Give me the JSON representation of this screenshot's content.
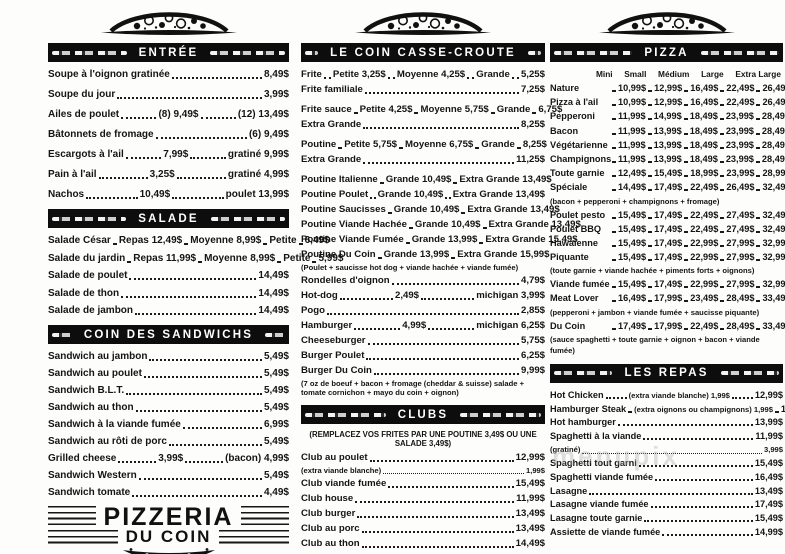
{
  "colors": {
    "ink": "#141414",
    "paper": "#fdfdfc",
    "header_bg": "#0d0d0d",
    "header_text": "#ffffff"
  },
  "watermark": "menupix",
  "logo": {
    "line1": "PIZZERIA",
    "line2": "DU COIN"
  },
  "columns": [
    {
      "sections": [
        {
          "title": "ENTRÉE",
          "rows": [
            [
              "Soupe à l'oignon gratinée",
              "~",
              "8,49$"
            ],
            [
              "Soupe du jour",
              "~",
              "3,99$"
            ],
            [
              "Ailes de poulet",
              "~",
              "(8) 9,49$",
              "~",
              "(12) 13,49$"
            ],
            [
              "Bâtonnets de fromage",
              "~",
              "(6) 9,49$"
            ],
            [
              "Escargots à l'ail",
              "~",
              "7,99$",
              "~",
              "gratiné 9,99$"
            ],
            [
              "Pain à l'ail",
              "~",
              "3,25$",
              "~",
              "gratiné 4,99$"
            ],
            [
              "Nachos",
              "~",
              "10,49$",
              "~",
              "poulet 13,99$"
            ]
          ]
        },
        {
          "title": "SALADE",
          "rows": [
            [
              "Salade César",
              "~",
              "Repas 12,49$",
              "~",
              "Moyenne 8,99$",
              "~",
              "Petite",
              "~",
              "6,49$"
            ],
            [
              "Salade du jardin",
              "~",
              "Repas 11,99$",
              "~",
              "Moyenne 8,99$",
              "~",
              "Petite",
              "~",
              "5,99$"
            ],
            [
              "Salade de poulet",
              "~",
              "14,49$"
            ],
            [
              "Salade de thon",
              "~",
              "14,49$"
            ],
            [
              "Salade de jambon",
              "~",
              "14,49$"
            ]
          ]
        },
        {
          "title": "COIN DES SANDWICHS",
          "rows": [
            [
              "Sandwich au jambon",
              "~",
              "5,49$"
            ],
            [
              "Sandwich au poulet",
              "~",
              "5,49$"
            ],
            [
              "Sandwich B.L.T.",
              "~",
              "5,49$"
            ],
            [
              "Sandwich au thon",
              "~",
              "5,49$"
            ],
            [
              "Sandwich à la viande fumée",
              "~",
              "6,99$"
            ],
            [
              "Sandwich au rôti de porc",
              "~",
              "5,49$"
            ],
            [
              "Grilled cheese",
              "~",
              "3,99$",
              "~",
              "(bacon) 4,99$"
            ],
            [
              "Sandwich Western",
              "~",
              "5,49$"
            ],
            [
              "Sandwich tomate",
              "~",
              "4,49$"
            ]
          ]
        }
      ]
    },
    {
      "sections": [
        {
          "title": "LE COIN CASSE-CROUTE",
          "rows": [
            [
              "Frite",
              "~",
              "Petite 3,25$",
              "~",
              "Moyenne 4,25$",
              "~",
              "Grande",
              "~",
              "5,25$"
            ],
            {
              "s": [
                "Frite familiale",
                "~",
                "7,25$"
              ],
              "gap": true
            },
            [
              "Frite sauce",
              "~",
              "Petite 4,25$",
              "~",
              "Moyenne 5,75$",
              "~",
              "Grande",
              "~",
              "6,75$"
            ],
            {
              "s": [
                "Extra Grande",
                "~",
                "8,25$"
              ],
              "gap": true
            },
            [
              "Poutine",
              "~",
              "Petite 5,75$",
              "~",
              "Moyenne 6,75$",
              "~",
              "Grande",
              "~",
              "8,25$"
            ],
            {
              "s": [
                "Extra Grande",
                "~",
                "11,25$"
              ],
              "gap": true
            },
            [
              "Poutine Italienne",
              "~",
              "Grande 10,49$",
              "~",
              "Extra Grande 13,49$"
            ],
            [
              "Poutine Poulet",
              "~",
              "Grande 10,49$",
              "~",
              "Extra Grande 13,49$"
            ],
            [
              "Poutine Saucisses",
              "~",
              "Grande 10,49$",
              "~",
              "Extra Grande 13,49$"
            ],
            [
              "Poutine Viande Hachée",
              "~",
              "Grande 10,49$",
              "~",
              "Extra Grande 13,49$"
            ],
            [
              "Poutine Viande Fumée",
              "~",
              "Grande 13,99$",
              "~",
              "Extra Grande 15,49$"
            ],
            [
              "Poutine Du Coin",
              "~",
              "Grande 13,99$",
              "~",
              "Extra Grande 15,99$"
            ],
            {
              "s": [
                "(Poulet + saucisse hot dog + viande hachée + viande fumée)"
              ],
              "note": true
            },
            [
              "Rondelles d'oignon",
              "~",
              "4,79$"
            ],
            [
              "Hot-dog",
              "~",
              "2,49$",
              "~",
              "michigan 3,99$"
            ],
            [
              "Pogo",
              "~",
              "2,85$"
            ],
            [
              "Hamburger",
              "~",
              "4,99$",
              "~",
              "michigan 6,25$"
            ],
            [
              "Cheeseburger",
              "~",
              "5,75$"
            ],
            [
              "Burger Poulet",
              "~",
              "6,25$"
            ],
            [
              "Burger Du Coin",
              "~",
              "9,99$"
            ],
            {
              "s": [
                "(7 oz de boeuf + bacon + fromage (cheddar & suisse) salade + tomate cornichon + mayo du coin + oignon)"
              ],
              "note": true
            }
          ]
        },
        {
          "title": "CLUBS",
          "subtitle": "(REMPLACEZ VOS FRITES PAR UNE POUTINE 3,49$ OU UNE SALADE 3,49$)",
          "rows": [
            [
              "Club au poulet",
              "~",
              "12,99$"
            ],
            {
              "s": [
                "(extra viande blanche)",
                "~",
                "1,99$"
              ],
              "note": true
            },
            [
              "Club viande fumée",
              "~",
              "15,49$"
            ],
            [
              "Club house",
              "~",
              "11,99$"
            ],
            [
              "Club burger",
              "~",
              "13,49$"
            ],
            [
              "Club au porc",
              "~",
              "13,49$"
            ],
            [
              "Club au thon",
              "~",
              "14,49$"
            ],
            [
              "Club à deux",
              "~",
              "(extra viande blanche) 1,99$",
              "~",
              "15,49$"
            ]
          ]
        }
      ]
    },
    {
      "sections": [
        {
          "title": "PIZZA",
          "sizes": [
            "Mini",
            "Small",
            "Médium",
            "Large",
            "Extra Large"
          ],
          "rows": [
            [
              "Nature",
              "~",
              "10,99$",
              "~",
              "12,99$",
              "~",
              "16,49$",
              "~",
              "22,49$",
              "~",
              "26,49$"
            ],
            [
              "Pizza à l'ail",
              "~",
              "10,99$",
              "~",
              "12,99$",
              "~",
              "16,49$",
              "~",
              "22,49$",
              "~",
              "26,49$"
            ],
            [
              "Pepperoni",
              "~",
              "11,99$",
              "~",
              "14,99$",
              "~",
              "18,49$",
              "~",
              "23,99$",
              "~",
              "28,49$"
            ],
            [
              "Bacon",
              "~",
              "11,99$",
              "~",
              "13,99$",
              "~",
              "18,49$",
              "~",
              "23,99$",
              "~",
              "28,49$"
            ],
            [
              "Végétarienne",
              "~",
              "11,99$",
              "~",
              "13,99$",
              "~",
              "18,49$",
              "~",
              "23,99$",
              "~",
              "28,49$"
            ],
            [
              "Champignons",
              "~",
              "11,99$",
              "~",
              "13,99$",
              "~",
              "18,49$",
              "~",
              "23,99$",
              "~",
              "28,49$"
            ],
            [
              "Toute garnie",
              "~",
              "12,49$",
              "~",
              "15,49$",
              "~",
              "18,99$",
              "~",
              "23,99$",
              "~",
              "28,99$"
            ],
            [
              "Spéciale",
              "~",
              "14,49$",
              "~",
              "17,49$",
              "~",
              "22,49$",
              "~",
              "26,49$",
              "~",
              "32,49$"
            ],
            {
              "s": [
                "(bacon + pepperoni + champignons + fromage)"
              ],
              "note": true
            },
            [
              "Poulet pesto",
              "~",
              "15,49$",
              "~",
              "17,49$",
              "~",
              "22,49$",
              "~",
              "27,49$",
              "~",
              "32,49$"
            ],
            [
              "Poulet BBQ",
              "~",
              "15,49$",
              "~",
              "17,49$",
              "~",
              "22,49$",
              "~",
              "27,49$",
              "~",
              "32,49$"
            ],
            [
              "Hawaienne",
              "~",
              "15,49$",
              "~",
              "17,49$",
              "~",
              "22,99$",
              "~",
              "27,99$",
              "~",
              "32,99$"
            ],
            [
              "Piquante",
              "~",
              "15,49$",
              "~",
              "17,49$",
              "~",
              "22,99$",
              "~",
              "27,99$",
              "~",
              "32,99$"
            ],
            {
              "s": [
                "(toute garnie + viande hachée + piments forts + oignons)"
              ],
              "note": true
            },
            [
              "Viande fumée",
              "~",
              "15,49$",
              "~",
              "17,49$",
              "~",
              "22,99$",
              "~",
              "27,99$",
              "~",
              "32,99$"
            ],
            [
              "Meat Lover",
              "~",
              "16,49$",
              "~",
              "17,99$",
              "~",
              "23,49$",
              "~",
              "28,49$",
              "~",
              "33,49$"
            ],
            {
              "s": [
                "(pepperoni + jambon + viande fumée + saucisse piquante)"
              ],
              "note": true
            },
            [
              "Du Coin",
              "~",
              "17,49$",
              "~",
              "17,99$",
              "~",
              "22,49$",
              "~",
              "28,49$",
              "~",
              "33,49$"
            ],
            {
              "s": [
                "(sauce spaghetti + toute garnie + oignon + bacon + viande fumée)"
              ],
              "note": true
            }
          ]
        },
        {
          "title": "LES REPAS",
          "rows": [
            [
              "Hot Chicken",
              "~",
              "(extra viande blanche) 1,99$",
              "~",
              "12,99$"
            ],
            [
              "Hamburger Steak",
              "~",
              "(extra oignons ou champignons) 1,99$",
              "~",
              "13,99$"
            ],
            [
              "Hot hamburger",
              "~",
              "13,99$"
            ],
            [
              "Spaghetti à la viande",
              "~",
              "11,99$"
            ],
            {
              "s": [
                "(gratiné)",
                "~",
                "3,99$"
              ],
              "note": true
            },
            [
              "Spaghetti tout garni",
              "~",
              "15,49$"
            ],
            [
              "Spaghetti viande fumée",
              "~",
              "16,49$"
            ],
            [
              "Lasagne",
              "~",
              "13,49$"
            ],
            [
              "Lasagne viande fumée",
              "~",
              "17,49$"
            ],
            [
              "Lasagne toute garnie",
              "~",
              "15,49$"
            ],
            [
              "Assiette de viande fumée",
              "~",
              "14,99$"
            ]
          ]
        }
      ]
    }
  ]
}
